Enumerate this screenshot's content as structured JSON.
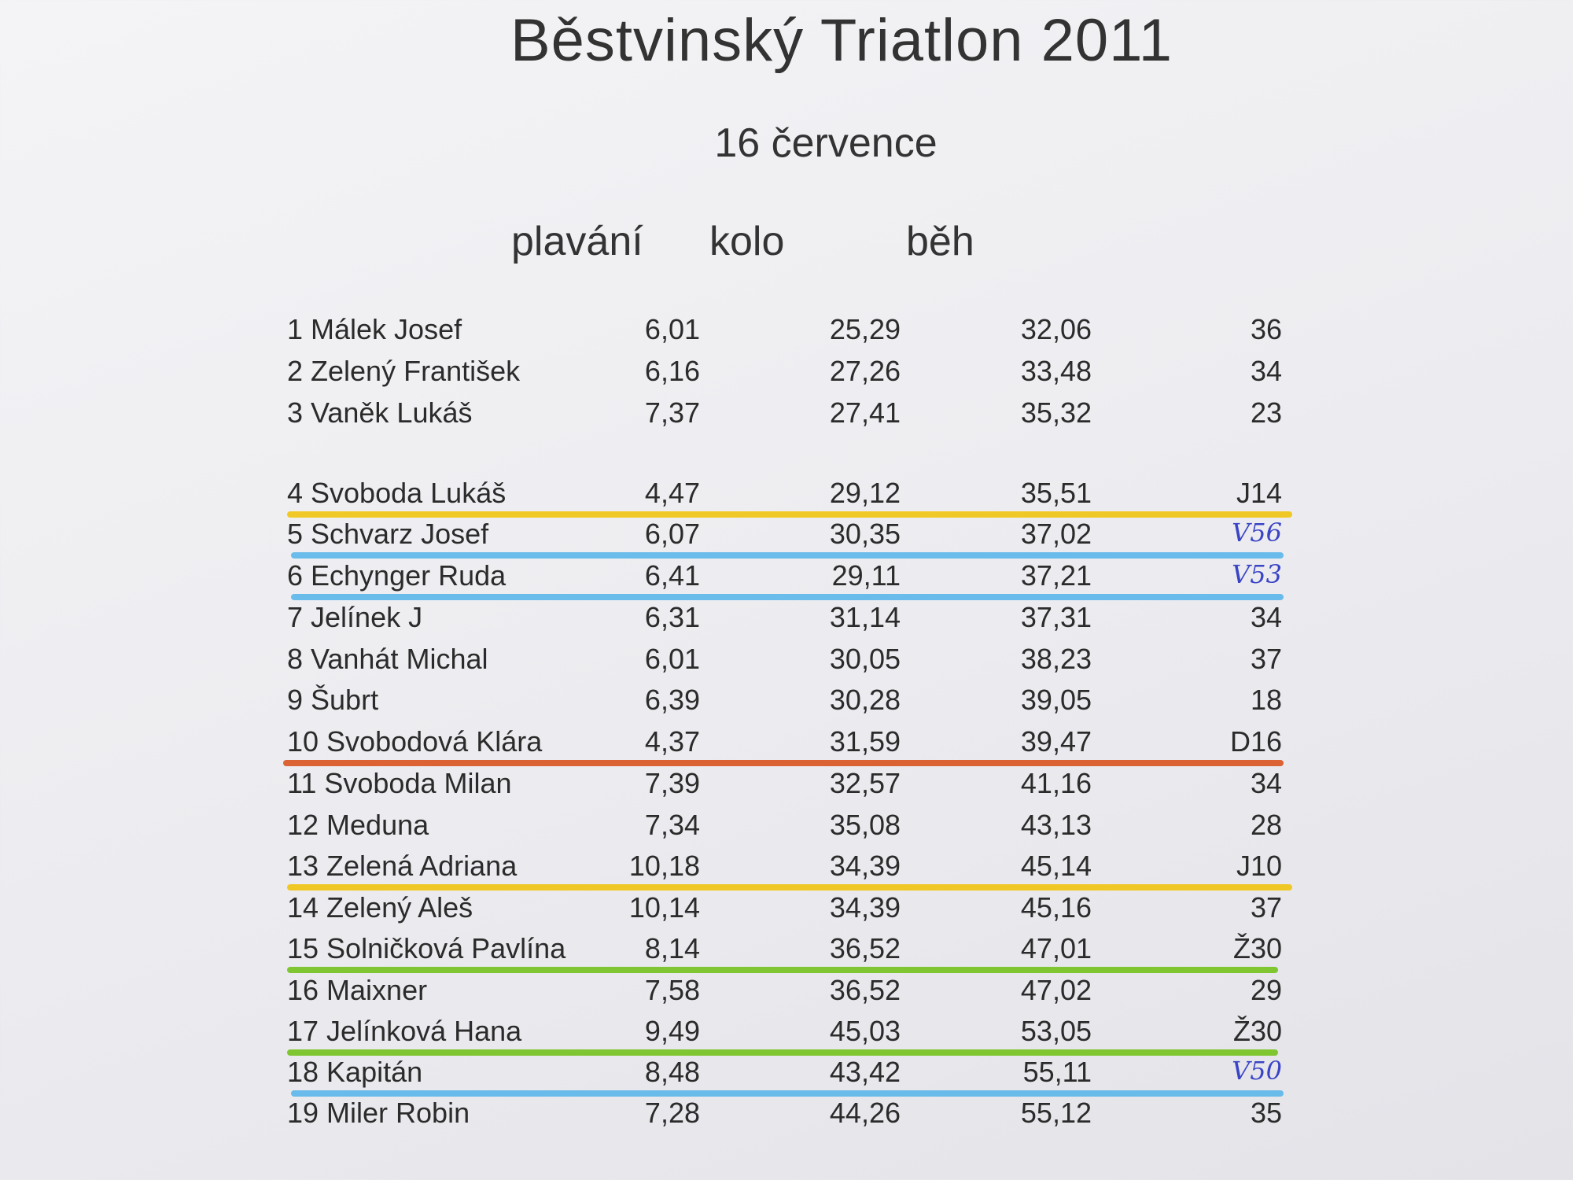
{
  "header": {
    "title": "Běstvinský Triatlon 2011",
    "date": "16 července"
  },
  "columns": {
    "swim": "plavání",
    "bike": "kolo",
    "run": "běh"
  },
  "highlight_colors": {
    "yellow": "#f1c40f",
    "blue": "#5bb6ea",
    "orange": "#d9531e",
    "green": "#74c21d"
  },
  "results": [
    {
      "name": "1 Málek Josef",
      "swim": "6,01",
      "bike": "25,29",
      "run": "32,06",
      "note": "36",
      "hand": false,
      "highlight": ""
    },
    {
      "name": "2 Zelený František",
      "swim": "6,16",
      "bike": "27,26",
      "run": "33,48",
      "note": "34",
      "hand": false,
      "highlight": ""
    },
    {
      "name": "3 Vaněk Lukáš",
      "swim": "7,37",
      "bike": "27,41",
      "run": "35,32",
      "note": "23",
      "hand": false,
      "highlight": ""
    },
    {
      "name": "4 Svoboda Lukáš",
      "swim": "4,47",
      "bike": "29,12",
      "run": "35,51",
      "note": "J14",
      "hand": false,
      "highlight": "yellow"
    },
    {
      "name": "5 Schvarz Josef",
      "swim": "6,07",
      "bike": "30,35",
      "run": "37,02",
      "note": "V56",
      "hand": true,
      "highlight": "blue"
    },
    {
      "name": "6 Echynger Ruda",
      "swim": "6,41",
      "bike": "29,11",
      "run": "37,21",
      "note": "V53",
      "hand": true,
      "highlight": "blue"
    },
    {
      "name": "7 Jelínek J",
      "swim": "6,31",
      "bike": "31,14",
      "run": "37,31",
      "note": "34",
      "hand": false,
      "highlight": ""
    },
    {
      "name": "8 Vanhát Michal",
      "swim": "6,01",
      "bike": "30,05",
      "run": "38,23",
      "note": "37",
      "hand": false,
      "highlight": ""
    },
    {
      "name": "9 Šubrt",
      "swim": "6,39",
      "bike": "30,28",
      "run": "39,05",
      "note": "18",
      "hand": false,
      "highlight": ""
    },
    {
      "name": "10 Svobodová Klára",
      "swim": "4,37",
      "bike": "31,59",
      "run": "39,47",
      "note": "D16",
      "hand": false,
      "highlight": "orange"
    },
    {
      "name": "11 Svoboda Milan",
      "swim": "7,39",
      "bike": "32,57",
      "run": "41,16",
      "note": "34",
      "hand": false,
      "highlight": ""
    },
    {
      "name": "12 Meduna",
      "swim": "7,34",
      "bike": "35,08",
      "run": "43,13",
      "note": "28",
      "hand": false,
      "highlight": ""
    },
    {
      "name": "13 Zelená Adriana",
      "swim": "10,18",
      "bike": "34,39",
      "run": "45,14",
      "note": "J10",
      "hand": false,
      "highlight": "yellow"
    },
    {
      "name": "14 Zelený Aleš",
      "swim": "10,14",
      "bike": "34,39",
      "run": "45,16",
      "note": "37",
      "hand": false,
      "highlight": ""
    },
    {
      "name": "15 Solničková Pavlína",
      "swim": "8,14",
      "bike": "36,52",
      "run": "47,01",
      "note": "Ž30",
      "hand": false,
      "highlight": "green"
    },
    {
      "name": "16 Maixner",
      "swim": "7,58",
      "bike": "36,52",
      "run": "47,02",
      "note": "29",
      "hand": false,
      "highlight": ""
    },
    {
      "name": "17 Jelínková Hana",
      "swim": "9,49",
      "bike": "45,03",
      "run": "53,05",
      "note": "Ž30",
      "hand": false,
      "highlight": "green"
    },
    {
      "name": "18 Kapitán",
      "swim": "8,48",
      "bike": "43,42",
      "run": "55,11",
      "note": "V50",
      "hand": true,
      "highlight": "blue"
    },
    {
      "name": "19 Miler Robin",
      "swim": "7,28",
      "bike": "44,26",
      "run": "55,12",
      "note": "35",
      "hand": false,
      "highlight": ""
    }
  ]
}
